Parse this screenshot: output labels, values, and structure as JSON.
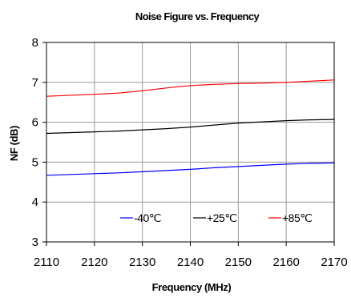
{
  "chart_data": {
    "type": "line",
    "title": "Noise Figure vs. Frequency",
    "xlabel": "Frequency (MHz)",
    "ylabel": "NF (dB)",
    "xlim": [
      2110,
      2170
    ],
    "ylim": [
      3,
      8
    ],
    "x_ticks": [
      2110,
      2120,
      2130,
      2140,
      2150,
      2160,
      2170
    ],
    "y_ticks": [
      3,
      4,
      5,
      6,
      7,
      8
    ],
    "grid": true,
    "legend_position": "bottom-right inside plot",
    "x": [
      2110,
      2120,
      2125,
      2130,
      2135,
      2140,
      2145,
      2150,
      2155,
      2160,
      2165,
      2170
    ],
    "series": [
      {
        "name": "-40℃",
        "color": "#0000ff",
        "values": [
          4.67,
          4.71,
          4.73,
          4.76,
          4.79,
          4.82,
          4.86,
          4.89,
          4.92,
          4.95,
          4.97,
          4.98
        ]
      },
      {
        "name": "+25℃",
        "color": "#000000",
        "values": [
          5.72,
          5.76,
          5.78,
          5.81,
          5.84,
          5.88,
          5.93,
          5.98,
          6.01,
          6.04,
          6.06,
          6.07
        ]
      },
      {
        "name": "+85℃",
        "color": "#ff0000",
        "values": [
          6.65,
          6.7,
          6.73,
          6.79,
          6.86,
          6.92,
          6.95,
          6.97,
          6.98,
          7.0,
          7.03,
          7.06
        ]
      }
    ]
  }
}
